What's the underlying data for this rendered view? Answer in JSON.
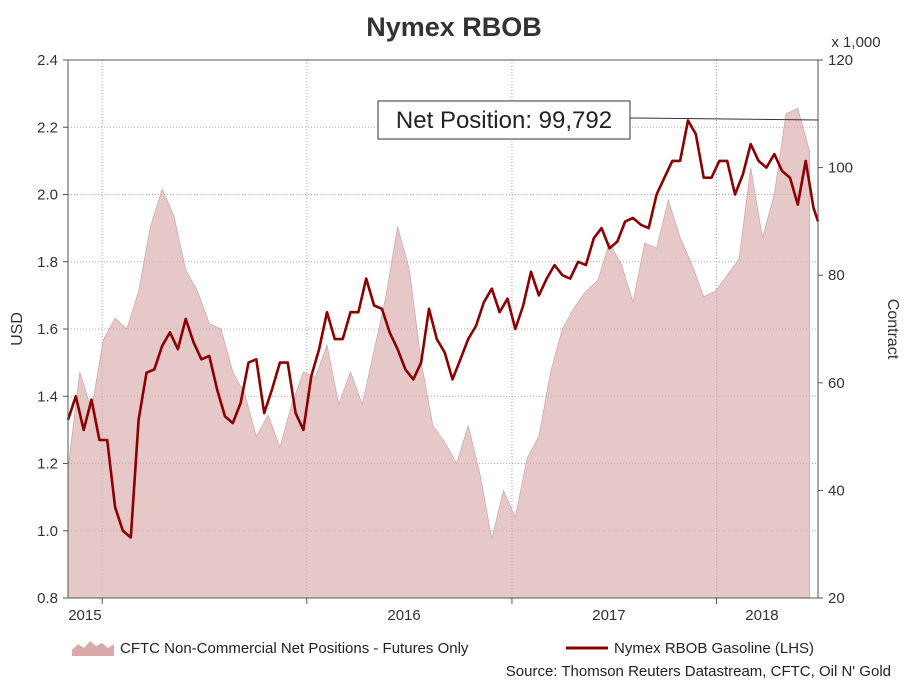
{
  "chart_data": {
    "type": "line",
    "title": "Nymex RBOB",
    "x_range": [
      "2014-11-01",
      "2018-07-01"
    ],
    "x_ticks": [
      "2015",
      "2016",
      "2017",
      "2018"
    ],
    "grid": true,
    "y_left": {
      "label": "USD",
      "range": [
        0.8,
        2.4
      ],
      "ticks": [
        "0.8",
        "1.0",
        "1.2",
        "1.4",
        "1.6",
        "1.8",
        "2.0",
        "2.2",
        "2.4"
      ]
    },
    "y_right": {
      "label": "Contract",
      "unit_note": "x 1,000",
      "range": [
        20,
        120
      ],
      "ticks": [
        "20",
        "40",
        "60",
        "80",
        "100",
        "120"
      ]
    },
    "annotation": {
      "text": "Net Position: 99,792"
    },
    "legend": {
      "placement": "bottom"
    },
    "source": "Source: Thomson Reuters Datastream, CFTC, Oil N' Gold",
    "series": [
      {
        "name": "CFTC Non-Commercial Net Positions - Futures Only",
        "axis": "right",
        "style": "area",
        "color": "#d9aaaa",
        "x": [
          "2014-11-01",
          "2014-11-22",
          "2014-12-13",
          "2015-01-03",
          "2015-01-24",
          "2015-02-14",
          "2015-03-07",
          "2015-03-28",
          "2015-04-18",
          "2015-05-09",
          "2015-05-30",
          "2015-06-20",
          "2015-07-11",
          "2015-08-01",
          "2015-08-22",
          "2015-09-12",
          "2015-10-03",
          "2015-10-24",
          "2015-11-14",
          "2015-12-05",
          "2015-12-26",
          "2016-01-16",
          "2016-02-06",
          "2016-02-27",
          "2016-03-19",
          "2016-04-09",
          "2016-04-30",
          "2016-05-21",
          "2016-06-11",
          "2016-07-02",
          "2016-07-23",
          "2016-08-13",
          "2016-09-03",
          "2016-09-24",
          "2016-10-15",
          "2016-11-05",
          "2016-11-26",
          "2016-12-17",
          "2017-01-07",
          "2017-01-28",
          "2017-02-18",
          "2017-03-11",
          "2017-04-01",
          "2017-04-22",
          "2017-05-13",
          "2017-06-03",
          "2017-06-24",
          "2017-07-15",
          "2017-08-05",
          "2017-08-26",
          "2017-09-16",
          "2017-10-07",
          "2017-10-28",
          "2017-11-18",
          "2017-12-09",
          "2017-12-30",
          "2018-01-20",
          "2018-02-10",
          "2018-03-03",
          "2018-03-24",
          "2018-04-14",
          "2018-05-05",
          "2018-05-26",
          "2018-06-16"
        ],
        "values": [
          44,
          62,
          55,
          68,
          72,
          70,
          77,
          89,
          96,
          91,
          81,
          77,
          71,
          70,
          62,
          58,
          50,
          54,
          48,
          56,
          62,
          61,
          67,
          56,
          62,
          56,
          66,
          76,
          89,
          81,
          64,
          52,
          49,
          45,
          52,
          43,
          31,
          40,
          35,
          46,
          50,
          62,
          70,
          74,
          77,
          79,
          86,
          82,
          75,
          86,
          85,
          94,
          87,
          82,
          76,
          77,
          80,
          83,
          100,
          87,
          95,
          110,
          111,
          103
        ],
        "fill_to": 20
      },
      {
        "name": "Nymex RBOB Gasoline (LHS)",
        "axis": "left",
        "style": "line",
        "color": "#8b0000",
        "x": [
          "2014-11-01",
          "2014-11-15",
          "2014-11-29",
          "2014-12-13",
          "2014-12-27",
          "2015-01-10",
          "2015-01-24",
          "2015-02-07",
          "2015-02-21",
          "2015-03-07",
          "2015-03-21",
          "2015-04-04",
          "2015-04-18",
          "2015-05-02",
          "2015-05-16",
          "2015-05-30",
          "2015-06-13",
          "2015-06-27",
          "2015-07-11",
          "2015-07-25",
          "2015-08-08",
          "2015-08-22",
          "2015-09-05",
          "2015-09-19",
          "2015-10-03",
          "2015-10-17",
          "2015-10-31",
          "2015-11-14",
          "2015-11-28",
          "2015-12-12",
          "2015-12-26",
          "2016-01-09",
          "2016-01-23",
          "2016-02-06",
          "2016-02-20",
          "2016-03-05",
          "2016-03-19",
          "2016-04-02",
          "2016-04-16",
          "2016-04-30",
          "2016-05-14",
          "2016-05-28",
          "2016-06-11",
          "2016-06-25",
          "2016-07-09",
          "2016-07-23",
          "2016-08-06",
          "2016-08-20",
          "2016-09-03",
          "2016-09-17",
          "2016-10-01",
          "2016-10-15",
          "2016-10-29",
          "2016-11-12",
          "2016-11-26",
          "2016-12-10",
          "2016-12-24",
          "2017-01-07",
          "2017-01-21",
          "2017-02-04",
          "2017-02-18",
          "2017-03-04",
          "2017-03-18",
          "2017-04-01",
          "2017-04-15",
          "2017-04-29",
          "2017-05-13",
          "2017-05-27",
          "2017-06-10",
          "2017-06-24",
          "2017-07-08",
          "2017-07-22",
          "2017-08-05",
          "2017-08-19",
          "2017-09-02",
          "2017-09-16",
          "2017-09-30",
          "2017-10-14",
          "2017-10-28",
          "2017-11-11",
          "2017-11-25",
          "2017-12-09",
          "2017-12-23",
          "2018-01-06",
          "2018-01-20",
          "2018-02-03",
          "2018-02-17",
          "2018-03-03",
          "2018-03-17",
          "2018-03-31",
          "2018-04-14",
          "2018-04-28",
          "2018-05-12",
          "2018-05-26",
          "2018-06-09",
          "2018-06-23",
          "2018-07-01"
        ],
        "values": [
          1.33,
          1.4,
          1.3,
          1.39,
          1.27,
          1.27,
          1.07,
          1.0,
          0.98,
          1.33,
          1.47,
          1.48,
          1.55,
          1.59,
          1.54,
          1.63,
          1.56,
          1.51,
          1.52,
          1.42,
          1.34,
          1.32,
          1.38,
          1.5,
          1.51,
          1.35,
          1.42,
          1.5,
          1.5,
          1.35,
          1.3,
          1.46,
          1.54,
          1.65,
          1.57,
          1.57,
          1.65,
          1.65,
          1.75,
          1.67,
          1.66,
          1.59,
          1.54,
          1.48,
          1.45,
          1.5,
          1.66,
          1.57,
          1.53,
          1.45,
          1.51,
          1.57,
          1.61,
          1.68,
          1.72,
          1.65,
          1.69,
          1.6,
          1.67,
          1.77,
          1.7,
          1.75,
          1.79,
          1.76,
          1.75,
          1.8,
          1.79,
          1.87,
          1.9,
          1.84,
          1.86,
          1.92,
          1.93,
          1.91,
          1.9,
          2.0,
          2.05,
          2.1,
          2.1,
          2.22,
          2.18,
          2.05,
          2.05,
          2.1,
          2.1,
          2.0,
          2.06,
          2.15,
          2.1,
          2.08,
          2.12,
          2.07,
          2.05,
          1.97,
          2.1,
          1.96,
          1.92
        ]
      }
    ]
  }
}
